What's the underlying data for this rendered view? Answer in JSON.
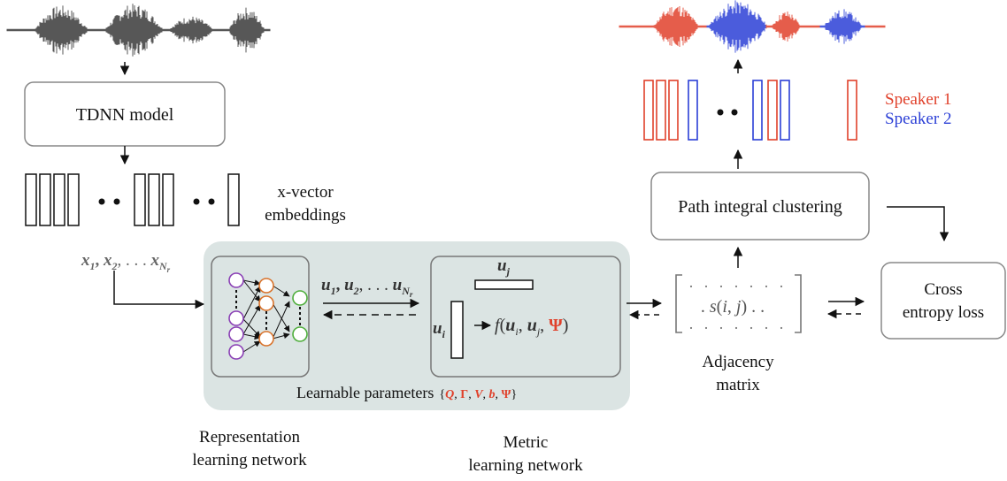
{
  "boxes": {
    "tdnn": "TDNN model",
    "path_clustering": "Path integral clustering",
    "cross_entropy_line1": "Cross",
    "cross_entropy_line2": "entropy loss"
  },
  "labels": {
    "xvector_line1": "x-vector",
    "xvector_line2": "embeddings",
    "repr_line1": "Representation",
    "repr_line2": "learning network",
    "metric_line1": "Metric",
    "metric_line2": "learning network",
    "adjacency_line1": "Adjacency",
    "adjacency_line2": "matrix",
    "learnable_params": "Learnable parameters",
    "speaker1": "Speaker 1",
    "speaker2": "Speaker 2"
  },
  "math": {
    "x1": "x",
    "x1_sub": "1",
    "x2": "x",
    "x2_sub": "2",
    "xn": "x",
    "xn_sub": "N",
    "xn_subsub": "r",
    "u1": "u",
    "u1_sub": "1",
    "u2": "u",
    "u2_sub": "2",
    "un": "u",
    "un_sub": "N",
    "un_subsub": "r",
    "uj": "u",
    "uj_sub": "j",
    "ui": "u",
    "ui_sub": "i",
    "f_func": "f",
    "psi": "Ψ",
    "s_func": "s",
    "i_var": "i",
    "j_var": "j",
    "param_Q": "Q",
    "param_Gamma": "Γ",
    "param_V": "V",
    "param_b": "b",
    "param_Psi": "Ψ"
  },
  "colors": {
    "speaker1": "#e0412b",
    "speaker2": "#2b3fd6",
    "panel": "#dbe4e3",
    "nn_purple": "#8a3fb5",
    "nn_orange": "#d9722a",
    "nn_green": "#4fae3c"
  }
}
